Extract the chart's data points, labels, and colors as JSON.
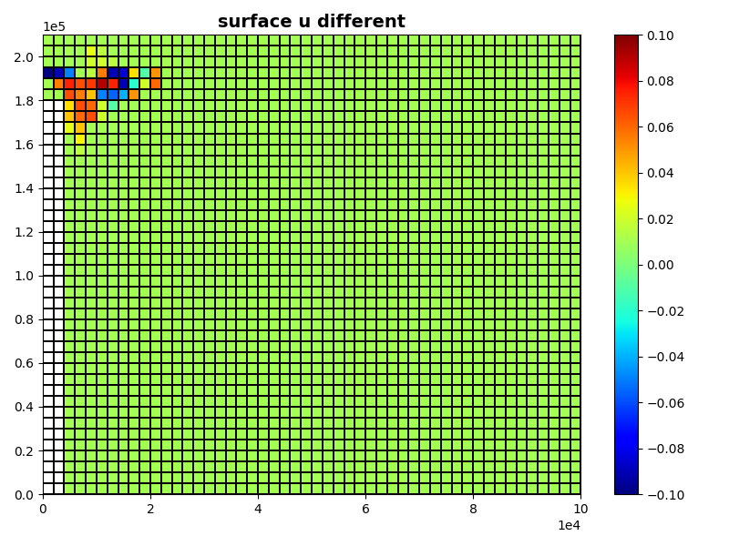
{
  "title": "surface u different",
  "xlim": [
    0,
    100000
  ],
  "ylim": [
    0,
    210000
  ],
  "clim": [
    -0.1,
    0.1
  ],
  "nx": 50,
  "ny": 42,
  "background_value": 0.01,
  "colormap": "jet",
  "title_fontsize": 14,
  "title_fontweight": "bold",
  "figsize": [
    8.0,
    6.0
  ],
  "dpi": 100,
  "white_col_max": 2,
  "white_row_max": 36,
  "anomaly": {
    "rows": [
      38,
      38,
      38,
      38,
      38,
      38,
      38,
      38,
      38,
      38,
      38,
      37,
      37,
      37,
      37,
      37,
      37,
      37,
      37,
      37,
      37,
      36,
      36,
      36,
      36,
      36,
      36,
      36,
      35,
      35,
      35,
      35,
      35,
      34,
      34,
      34,
      34,
      33,
      33,
      32,
      31,
      39,
      39,
      39,
      40,
      40
    ],
    "cols": [
      0,
      1,
      2,
      3,
      4,
      5,
      6,
      7,
      8,
      9,
      10,
      1,
      2,
      3,
      4,
      5,
      6,
      7,
      8,
      9,
      10,
      2,
      3,
      4,
      5,
      6,
      7,
      8,
      2,
      3,
      4,
      5,
      6,
      2,
      3,
      4,
      5,
      2,
      3,
      3,
      3,
      4,
      5,
      6,
      4,
      5
    ],
    "vals": [
      -0.1,
      -0.09,
      -0.05,
      0.01,
      0.015,
      0.055,
      -0.09,
      -0.085,
      0.035,
      -0.01,
      0.05,
      0.055,
      0.075,
      0.065,
      0.07,
      0.09,
      0.075,
      -0.09,
      -0.02,
      0.02,
      0.06,
      0.065,
      0.055,
      0.04,
      -0.05,
      -0.055,
      -0.04,
      0.05,
      0.035,
      0.065,
      0.06,
      0.02,
      -0.01,
      0.04,
      0.06,
      0.065,
      0.02,
      0.025,
      0.04,
      0.03,
      0.015,
      0.02,
      0.02,
      0.015,
      0.025,
      0.015
    ]
  }
}
